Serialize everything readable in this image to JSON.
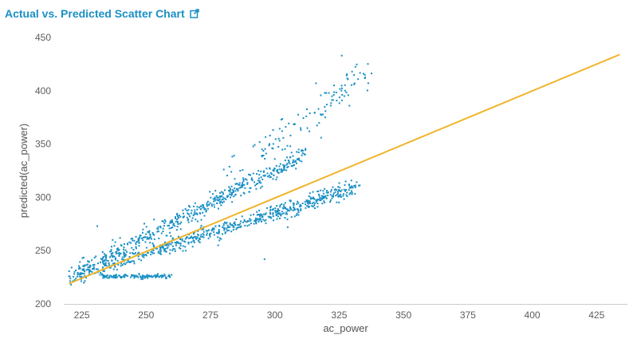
{
  "panel": {
    "title": "Actual vs. Predicted Scatter Chart",
    "link_icon": "external-link-icon"
  },
  "colors": {
    "title": "#1a8fc4",
    "points": "#1a8fc4",
    "fit_line": "#f0b429",
    "axis": "#cccccc",
    "text": "#5c5c5c"
  },
  "chart_data": {
    "type": "scatter",
    "title": "",
    "xlabel": "ac_power",
    "ylabel": "predicted(ac_power)",
    "xlim": [
      218,
      437
    ],
    "ylim": [
      200,
      450
    ],
    "xticks": [
      225,
      250,
      275,
      300,
      325,
      350,
      375,
      400,
      425
    ],
    "yticks": [
      200,
      250,
      300,
      350,
      400,
      450
    ],
    "grid": false,
    "legend": "none",
    "fit_line": {
      "x": [
        220,
        434
      ],
      "y": [
        219,
        434
      ]
    },
    "clusters": [
      {
        "name": "",
        "x_range": [
          220,
          333
        ],
        "y_start": 225,
        "y_end": 310,
        "spread": 5,
        "count": 650
      },
      {
        "name": "",
        "x_range": [
          222,
          312
        ],
        "y_start": 228,
        "y_end": 340,
        "spread": 6,
        "count": 500
      },
      {
        "name": "",
        "x_range": [
          280,
          338
        ],
        "y_start": 320,
        "y_end": 420,
        "spread": 12,
        "count": 110
      },
      {
        "name": "",
        "x_range": [
          232,
          260
        ],
        "y_start": 226,
        "y_end": 226,
        "spread": 1.5,
        "count": 120
      }
    ],
    "outliers": [
      {
        "x": 326,
        "y": 433
      },
      {
        "x": 335,
        "y": 415
      },
      {
        "x": 330,
        "y": 418
      },
      {
        "x": 316,
        "y": 407
      },
      {
        "x": 323,
        "y": 405
      },
      {
        "x": 327,
        "y": 395
      },
      {
        "x": 320,
        "y": 398
      },
      {
        "x": 329,
        "y": 386
      },
      {
        "x": 310,
        "y": 365
      },
      {
        "x": 306,
        "y": 348
      },
      {
        "x": 318,
        "y": 356
      },
      {
        "x": 295,
        "y": 345
      },
      {
        "x": 293,
        "y": 322
      },
      {
        "x": 300,
        "y": 336
      },
      {
        "x": 297,
        "y": 290
      },
      {
        "x": 296,
        "y": 242
      },
      {
        "x": 305,
        "y": 272
      },
      {
        "x": 304,
        "y": 290
      },
      {
        "x": 278,
        "y": 255
      },
      {
        "x": 285,
        "y": 270
      },
      {
        "x": 231,
        "y": 273
      },
      {
        "x": 237,
        "y": 260
      },
      {
        "x": 236,
        "y": 249
      },
      {
        "x": 238,
        "y": 258
      },
      {
        "x": 296,
        "y": 278
      }
    ]
  }
}
